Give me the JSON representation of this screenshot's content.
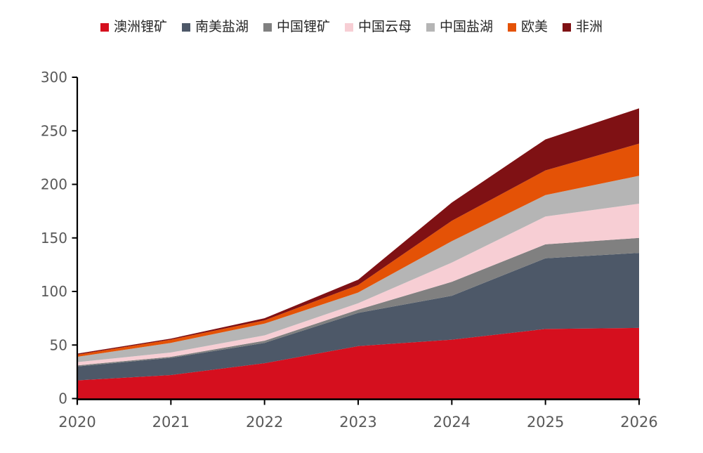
{
  "page": {
    "background": "#ffffff",
    "title": ""
  },
  "colors": {
    "axis_line": "#000000",
    "tick_label": "#595959",
    "legend_text": "#262626"
  },
  "chart_data": {
    "type": "area",
    "stacked": true,
    "title": "",
    "xlabel": "",
    "ylabel": "",
    "grid": false,
    "legend_position": "top",
    "x": [
      "2020",
      "2021",
      "2022",
      "2023",
      "2024",
      "2025",
      "2026"
    ],
    "ylim": [
      0,
      300
    ],
    "ytick_interval": 50,
    "yticks": [
      0,
      50,
      100,
      150,
      200,
      250,
      300
    ],
    "series": [
      {
        "name": "澳洲锂矿",
        "color": "#D50F1E",
        "values": [
          17,
          22,
          33,
          49,
          55,
          65,
          66
        ]
      },
      {
        "name": "南美盐湖",
        "color": "#4D5868",
        "values": [
          13,
          16,
          19,
          31,
          41,
          66,
          70
        ]
      },
      {
        "name": "中国锂矿",
        "color": "#808080",
        "values": [
          1,
          1,
          2,
          3,
          13,
          13,
          14
        ]
      },
      {
        "name": "中国云母",
        "color": "#F7CED4",
        "values": [
          3,
          4,
          5,
          6,
          18,
          26,
          32
        ]
      },
      {
        "name": "中国盐湖",
        "color": "#B5B5B5",
        "values": [
          5,
          9,
          11,
          10,
          20,
          20,
          26
        ]
      },
      {
        "name": "欧美",
        "color": "#E45206",
        "values": [
          2,
          3,
          3,
          7,
          19,
          23,
          30
        ]
      },
      {
        "name": "非洲",
        "color": "#7F1114",
        "values": [
          1,
          1,
          2,
          5,
          17,
          29,
          33
        ]
      }
    ],
    "totals": [
      42,
      56,
      75,
      111,
      183,
      242,
      271
    ]
  }
}
